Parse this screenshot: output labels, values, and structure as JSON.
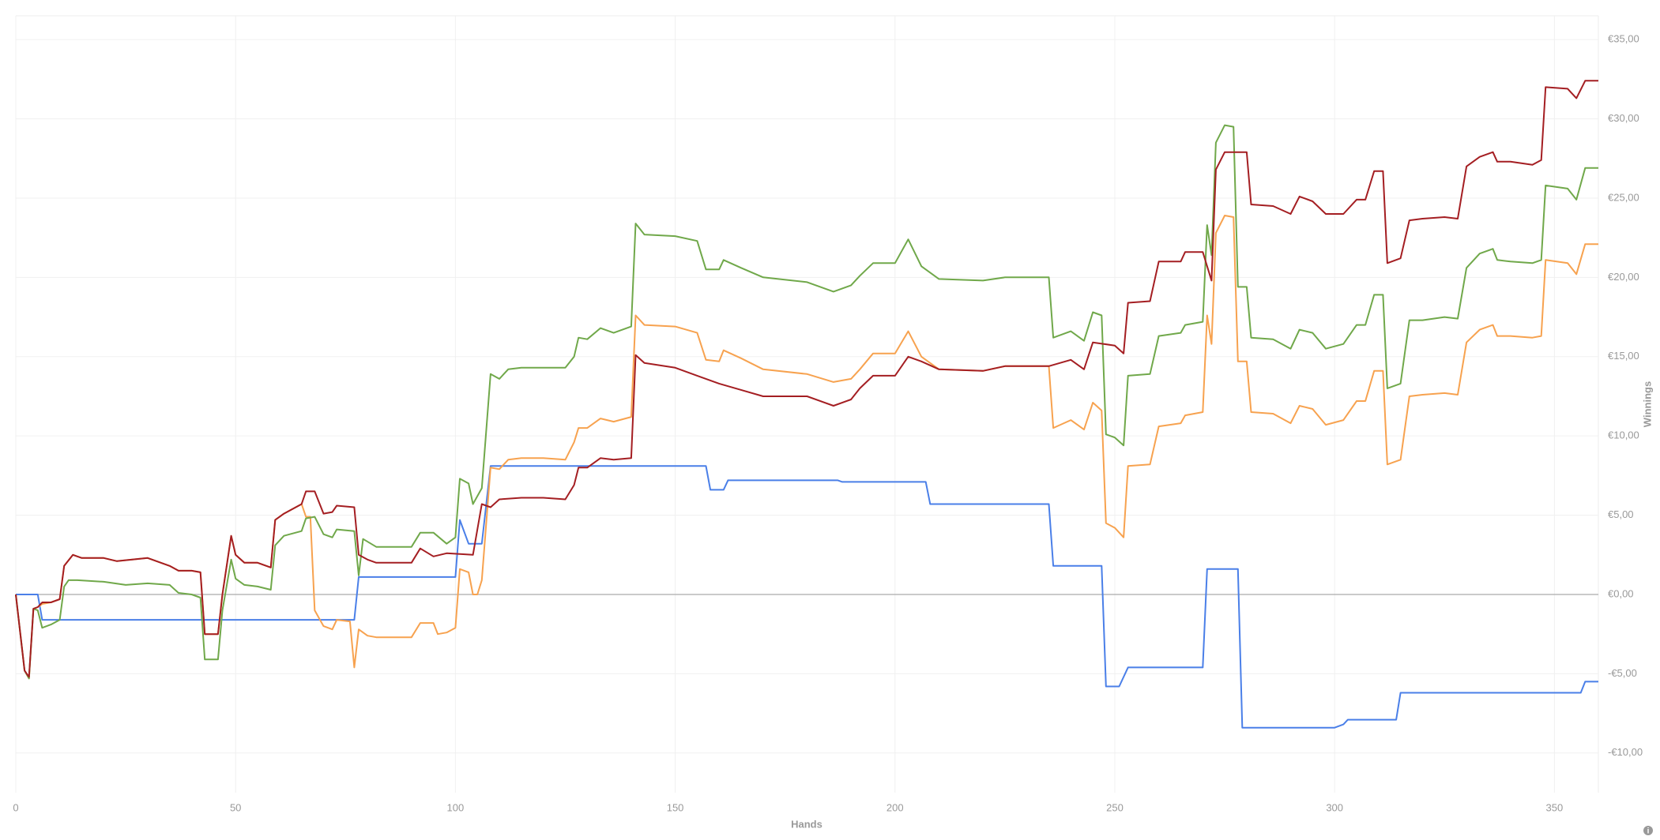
{
  "chart_data": {
    "type": "line",
    "x_label": "Hands",
    "y_label": "Winnings",
    "xlim": [
      0,
      360
    ],
    "xticks": [
      0,
      50,
      100,
      150,
      200,
      250,
      300,
      350
    ],
    "ylim": [
      -12.5,
      36.5
    ],
    "yticks": [
      {
        "value": -10,
        "label": "-€10,00"
      },
      {
        "value": -5,
        "label": "-€5,00"
      },
      {
        "value": 0,
        "label": "€0,00"
      },
      {
        "value": 5,
        "label": "€5,00"
      },
      {
        "value": 10,
        "label": "€10,00"
      },
      {
        "value": 15,
        "label": "€15,00"
      },
      {
        "value": 20,
        "label": "€20,00"
      },
      {
        "value": 25,
        "label": "€25,00"
      },
      {
        "value": 30,
        "label": "€30,00"
      },
      {
        "value": 35,
        "label": "€35,00"
      }
    ],
    "grid": true,
    "series": [
      {
        "color": "#4a7fe8",
        "x": [
          0,
          5,
          6,
          77,
          78,
          100,
          101,
          103,
          106,
          108,
          157,
          158,
          161,
          162,
          187,
          188,
          207,
          208,
          235,
          236,
          247,
          248,
          251,
          253,
          270,
          271,
          278,
          279,
          300,
          302,
          303,
          314,
          315,
          356,
          357,
          360
        ],
        "values": [
          0,
          0,
          -1.6,
          -1.6,
          1.1,
          1.1,
          4.7,
          3.2,
          3.2,
          8.1,
          8.1,
          6.6,
          6.6,
          7.2,
          7.2,
          7.1,
          7.1,
          5.7,
          5.7,
          1.8,
          1.8,
          -5.8,
          -5.8,
          -4.6,
          -4.6,
          1.6,
          1.6,
          -8.4,
          -8.4,
          -8.2,
          -7.9,
          -7.9,
          -6.2,
          -6.2,
          -5.5,
          -5.5
        ]
      },
      {
        "color": "#f7a24f",
        "x": [
          0,
          2,
          3,
          4,
          5,
          6,
          8,
          10,
          11,
          13,
          15,
          20,
          23,
          30,
          35,
          37,
          40,
          42,
          43,
          46,
          47,
          49,
          50,
          52,
          55,
          58,
          59,
          61,
          65,
          66,
          67,
          68,
          70,
          72,
          73,
          76,
          77,
          78,
          80,
          82,
          90,
          92,
          95,
          96,
          98,
          100,
          101,
          103,
          104,
          105,
          106,
          108,
          110,
          112,
          115,
          120,
          125,
          127,
          128,
          130,
          133,
          136,
          140,
          141,
          143,
          150,
          155,
          157,
          160,
          161,
          165,
          170,
          180,
          186,
          190,
          192,
          195,
          200,
          203,
          206,
          210,
          220,
          225,
          230,
          235,
          236,
          240,
          243,
          245,
          247,
          248,
          250,
          252,
          253,
          258,
          260,
          265,
          266,
          270,
          271,
          272,
          273,
          275,
          277,
          278,
          280,
          281,
          286,
          290,
          292,
          295,
          298,
          302,
          305,
          307,
          309,
          311,
          312,
          315,
          317,
          320,
          325,
          328,
          330,
          333,
          336,
          337,
          340,
          345,
          347,
          348,
          353,
          355,
          357,
          360
        ],
        "values": [
          0,
          -4.8,
          -5.3,
          -0.9,
          -0.8,
          -0.6,
          -0.5,
          -0.3,
          1.8,
          2.5,
          2.3,
          2.3,
          2.1,
          2.3,
          1.8,
          1.5,
          1.5,
          1.4,
          -2.5,
          -2.5,
          0,
          3.7,
          2.5,
          2,
          2,
          1.7,
          4.7,
          5.1,
          5.7,
          4.9,
          4.9,
          -1,
          -2,
          -2.2,
          -1.6,
          -1.7,
          -4.6,
          -2.2,
          -2.6,
          -2.7,
          -2.7,
          -1.8,
          -1.8,
          -2.5,
          -2.4,
          -2.1,
          1.6,
          1.4,
          0,
          0,
          0.9,
          8,
          7.9,
          8.5,
          8.6,
          8.6,
          8.5,
          9.6,
          10.5,
          10.5,
          11.1,
          10.9,
          11.2,
          17.6,
          17,
          16.9,
          16.5,
          14.8,
          14.7,
          15.4,
          14.9,
          14.2,
          13.9,
          13.4,
          13.6,
          14.2,
          15.2,
          15.2,
          16.6,
          15,
          14.2,
          14.1,
          14.4,
          14.4,
          14.4,
          10.5,
          11,
          10.4,
          12.1,
          11.6,
          4.5,
          4.2,
          3.6,
          8.1,
          8.2,
          10.6,
          10.8,
          11.3,
          11.5,
          17.6,
          15.8,
          22.8,
          23.9,
          23.8,
          14.7,
          14.7,
          11.5,
          11.4,
          10.8,
          11.9,
          11.7,
          10.7,
          11,
          12.2,
          12.2,
          14.1,
          14.1,
          8.2,
          8.5,
          12.5,
          12.6,
          12.7,
          12.6,
          15.9,
          16.7,
          17,
          16.3,
          16.3,
          16.2,
          16.3,
          21.1,
          20.9,
          20.2,
          22.1,
          22.1
        ]
      },
      {
        "color": "#70a84a",
        "x": [
          0,
          2,
          3,
          4,
          5,
          6,
          8,
          10,
          11,
          12,
          14,
          20,
          25,
          30,
          35,
          37,
          40,
          42,
          43,
          46,
          47,
          49,
          50,
          52,
          55,
          58,
          59,
          61,
          65,
          66,
          68,
          70,
          72,
          73,
          77,
          78,
          79,
          82,
          90,
          92,
          95,
          98,
          100,
          101,
          103,
          104,
          106,
          108,
          110,
          112,
          115,
          120,
          125,
          127,
          128,
          130,
          133,
          136,
          140,
          141,
          143,
          150,
          155,
          157,
          160,
          161,
          165,
          170,
          180,
          186,
          190,
          192,
          195,
          200,
          203,
          206,
          210,
          220,
          225,
          230,
          235,
          236,
          240,
          243,
          245,
          247,
          248,
          250,
          252,
          253,
          258,
          260,
          265,
          266,
          270,
          271,
          272,
          273,
          275,
          277,
          278,
          280,
          281,
          286,
          290,
          292,
          295,
          298,
          302,
          305,
          307,
          309,
          311,
          312,
          315,
          317,
          320,
          325,
          328,
          330,
          333,
          336,
          337,
          340,
          345,
          347,
          348,
          353,
          355,
          357,
          360
        ],
        "values": [
          0,
          -4.8,
          -5.3,
          -0.9,
          -1,
          -2.1,
          -1.9,
          -1.6,
          0.5,
          0.9,
          0.9,
          0.8,
          0.6,
          0.7,
          0.6,
          0.1,
          0,
          -0.2,
          -4.1,
          -4.1,
          -1,
          2.2,
          1,
          0.6,
          0.5,
          0.3,
          3.1,
          3.7,
          4,
          4.8,
          4.9,
          3.8,
          3.6,
          4.1,
          4,
          1.2,
          3.5,
          3,
          3,
          3.9,
          3.9,
          3.2,
          3.6,
          7.3,
          7,
          5.7,
          6.7,
          13.9,
          13.6,
          14.2,
          14.3,
          14.3,
          14.3,
          15,
          16.2,
          16.1,
          16.8,
          16.5,
          16.9,
          23.4,
          22.7,
          22.6,
          22.3,
          20.5,
          20.5,
          21.1,
          20.6,
          20,
          19.7,
          19.1,
          19.5,
          20.1,
          20.9,
          20.9,
          22.4,
          20.7,
          19.9,
          19.8,
          20,
          20,
          20,
          16.2,
          16.6,
          16,
          17.8,
          17.6,
          10.1,
          9.9,
          9.4,
          13.8,
          13.9,
          16.3,
          16.5,
          17,
          17.2,
          23.3,
          21.4,
          28.5,
          29.6,
          29.5,
          19.4,
          19.4,
          16.2,
          16.1,
          15.5,
          16.7,
          16.5,
          15.5,
          15.8,
          17,
          17,
          18.9,
          18.9,
          13,
          13.3,
          17.3,
          17.3,
          17.5,
          17.4,
          20.6,
          21.5,
          21.8,
          21.1,
          21,
          20.9,
          21.1,
          25.8,
          25.6,
          24.9,
          26.9,
          26.9
        ]
      },
      {
        "color": "#a41e22",
        "x": [
          0,
          2,
          3,
          4,
          5,
          6,
          8,
          10,
          11,
          13,
          15,
          20,
          23,
          30,
          35,
          37,
          40,
          42,
          43,
          46,
          47,
          49,
          50,
          52,
          55,
          58,
          59,
          61,
          65,
          66,
          68,
          70,
          72,
          73,
          77,
          78,
          80,
          82,
          90,
          92,
          95,
          98,
          104,
          106,
          108,
          110,
          115,
          120,
          125,
          127,
          128,
          130,
          133,
          136,
          140,
          141,
          143,
          150,
          155,
          160,
          165,
          170,
          180,
          186,
          190,
          192,
          195,
          200,
          203,
          206,
          210,
          220,
          225,
          230,
          235,
          240,
          243,
          245,
          250,
          252,
          253,
          258,
          260,
          265,
          266,
          270,
          272,
          273,
          275,
          280,
          281,
          286,
          290,
          292,
          295,
          298,
          302,
          305,
          307,
          309,
          311,
          312,
          315,
          317,
          320,
          325,
          328,
          330,
          333,
          336,
          337,
          340,
          345,
          347,
          348,
          353,
          355,
          357,
          360
        ],
        "values": [
          0,
          -4.8,
          -5.2,
          -0.9,
          -0.8,
          -0.5,
          -0.5,
          -0.3,
          1.8,
          2.5,
          2.3,
          2.3,
          2.1,
          2.3,
          1.8,
          1.5,
          1.5,
          1.4,
          -2.5,
          -2.5,
          0,
          3.7,
          2.5,
          2,
          2,
          1.7,
          4.7,
          5.1,
          5.7,
          6.5,
          6.5,
          5.1,
          5.2,
          5.6,
          5.5,
          2.5,
          2.2,
          2,
          2,
          2.9,
          2.4,
          2.6,
          2.5,
          5.7,
          5.5,
          6,
          6.1,
          6.1,
          6,
          6.9,
          8,
          8,
          8.6,
          8.5,
          8.6,
          15.1,
          14.6,
          14.3,
          13.8,
          13.3,
          12.9,
          12.5,
          12.5,
          11.9,
          12.3,
          13,
          13.8,
          13.8,
          15,
          14.7,
          14.2,
          14.1,
          14.4,
          14.4,
          14.4,
          14.8,
          14.2,
          15.9,
          15.7,
          15.2,
          18.4,
          18.5,
          21,
          21,
          21.6,
          21.6,
          19.8,
          26.8,
          27.9,
          27.9,
          24.6,
          24.5,
          24,
          25.1,
          24.8,
          24,
          24,
          24.9,
          24.9,
          26.7,
          26.7,
          20.9,
          21.2,
          23.6,
          23.7,
          23.8,
          23.7,
          27,
          27.6,
          27.9,
          27.3,
          27.3,
          27.1,
          27.4,
          32,
          31.9,
          31.3,
          32.4,
          32.4
        ]
      }
    ]
  }
}
